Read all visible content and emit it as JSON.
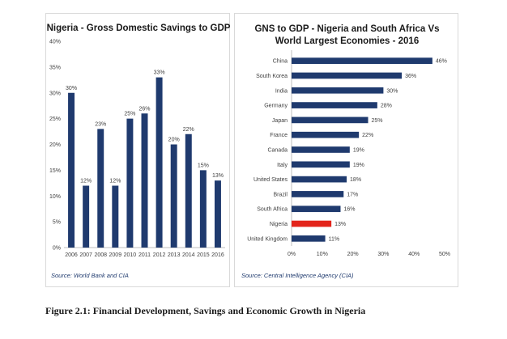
{
  "caption": "Figure 2.1: Financial Development, Savings and Economic Growth in Nigeria",
  "chart_data": [
    {
      "type": "bar",
      "orientation": "vertical",
      "title": "Nigeria - Gross Domestic Savings to GDP",
      "categories": [
        "2006",
        "2007",
        "2008",
        "2009",
        "2010",
        "2011",
        "2012",
        "2013",
        "2014",
        "2015",
        "2016"
      ],
      "values": [
        30,
        12,
        23,
        12,
        25,
        26,
        33,
        20,
        22,
        15,
        13
      ],
      "data_labels": [
        "30%",
        "12%",
        "23%",
        "12%",
        "25%",
        "26%",
        "33%",
        "20%",
        "22%",
        "15%",
        "13%"
      ],
      "ylim": [
        0,
        40
      ],
      "yticks": [
        "0%",
        "5%",
        "10%",
        "15%",
        "20%",
        "25%",
        "30%",
        "35%",
        "40%"
      ],
      "bar_color": "#1f3a6e",
      "grid": false,
      "source": "Source: World Bank and CIA"
    },
    {
      "type": "bar",
      "orientation": "horizontal",
      "title_lines": [
        "GNS to GDP - Nigeria and South Africa Vs",
        "World Largest Economies - 2016"
      ],
      "categories": [
        "China",
        "South Korea",
        "India",
        "Germany",
        "Japan",
        "France",
        "Canada",
        "Italy",
        "United States",
        "Brazil",
        "South Africa",
        "Nigeria",
        "United Kingdom"
      ],
      "values": [
        46,
        36,
        30,
        28,
        25,
        22,
        19,
        19,
        18,
        17,
        16,
        13,
        11
      ],
      "data_labels": [
        "46%",
        "36%",
        "30%",
        "28%",
        "25%",
        "22%",
        "19%",
        "19%",
        "18%",
        "17%",
        "16%",
        "13%",
        "11%"
      ],
      "xlim": [
        0,
        50
      ],
      "xticks": [
        "0%",
        "10%",
        "20%",
        "30%",
        "40%",
        "50%"
      ],
      "bar_color": "#1f3a6e",
      "highlight_category": "Nigeria",
      "highlight_color": "#e3241b",
      "grid": false,
      "source": "Source: Central Intelligence Agency (CIA)"
    }
  ]
}
